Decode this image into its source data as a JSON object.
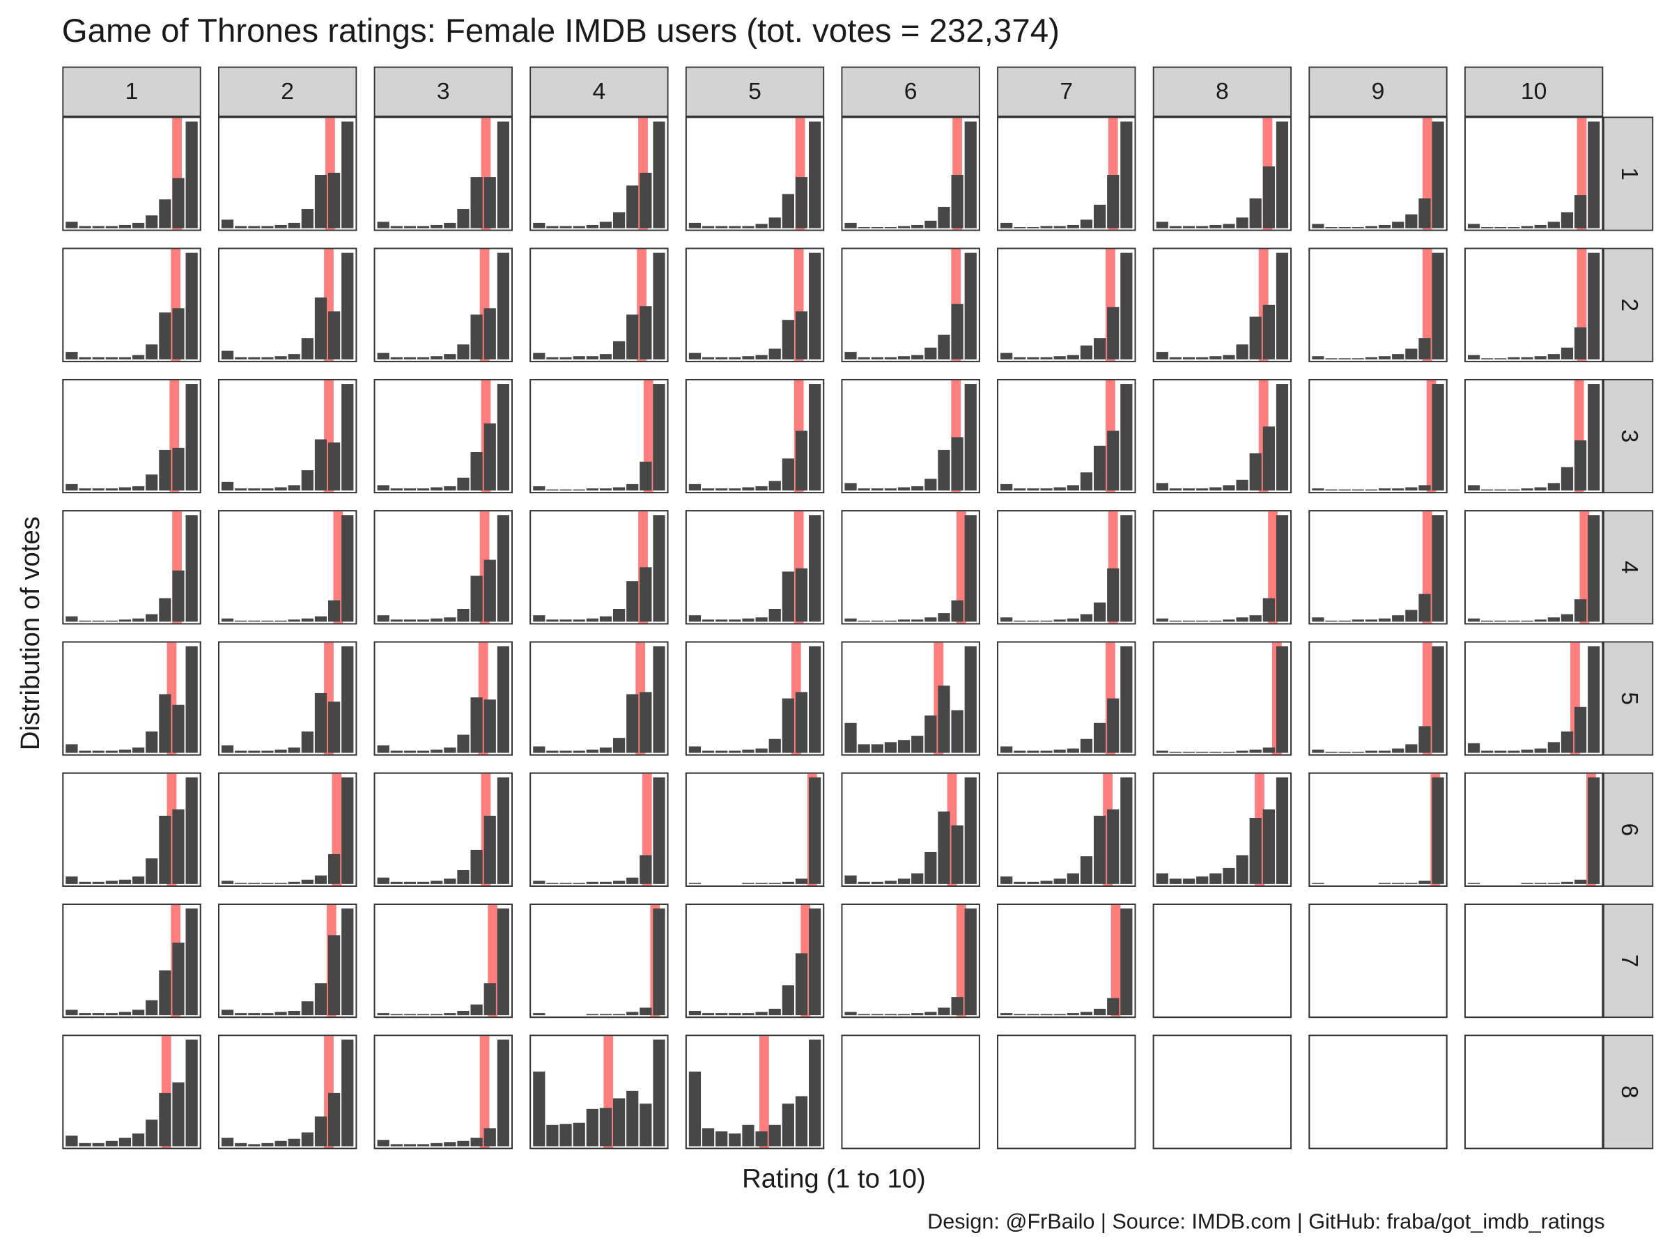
{
  "chart_data": {
    "type": "bar",
    "title": "Game of Thrones ratings: Female IMDB users (tot. votes = 232,374)",
    "x_label": "Rating (1 to 10)",
    "y_label": "Distribution of votes",
    "caption": "Design: @FrBailo | Source: IMDB.com | GitHub: fraba/got_imdb_ratings",
    "episodes": [
      "1",
      "2",
      "3",
      "4",
      "5",
      "6",
      "7",
      "8",
      "9",
      "10"
    ],
    "seasons": [
      "1",
      "2",
      "3",
      "4",
      "5",
      "6",
      "7",
      "8"
    ],
    "xlim": [
      0.5,
      10.5
    ],
    "color": "#474747",
    "mean_color": "#ff7f7f",
    "values": [
      [
        [
          6,
          2,
          2,
          2,
          3,
          5,
          12,
          27,
          47,
          100
        ],
        [
          8,
          2,
          2,
          2,
          3,
          5,
          18,
          50,
          52,
          100
        ],
        [
          6,
          2,
          2,
          2,
          3,
          5,
          18,
          48,
          48,
          100
        ],
        [
          5,
          2,
          2,
          2,
          3,
          6,
          15,
          40,
          52,
          100
        ],
        [
          5,
          2,
          2,
          2,
          2,
          4,
          10,
          32,
          48,
          100
        ],
        [
          5,
          1,
          1,
          1,
          2,
          3,
          7,
          20,
          50,
          100
        ],
        [
          5,
          1,
          1,
          2,
          2,
          3,
          8,
          22,
          50,
          100
        ],
        [
          6,
          2,
          2,
          2,
          3,
          4,
          10,
          28,
          58,
          100
        ],
        [
          4,
          1,
          1,
          1,
          2,
          3,
          6,
          13,
          28,
          100
        ],
        [
          4,
          1,
          1,
          1,
          2,
          3,
          6,
          15,
          31,
          100
        ]
      ],
      [
        [
          7,
          2,
          2,
          2,
          2,
          4,
          14,
          44,
          48,
          100
        ],
        [
          8,
          2,
          2,
          2,
          3,
          5,
          20,
          58,
          45,
          100
        ],
        [
          6,
          2,
          2,
          2,
          3,
          5,
          14,
          42,
          48,
          100
        ],
        [
          6,
          2,
          2,
          3,
          3,
          5,
          17,
          42,
          50,
          100
        ],
        [
          6,
          2,
          2,
          2,
          3,
          4,
          10,
          37,
          45,
          100
        ],
        [
          7,
          2,
          2,
          2,
          3,
          4,
          11,
          23,
          52,
          100
        ],
        [
          6,
          2,
          2,
          2,
          3,
          4,
          13,
          20,
          49,
          100
        ],
        [
          7,
          2,
          2,
          2,
          3,
          4,
          14,
          40,
          51,
          100
        ],
        [
          3,
          1,
          1,
          1,
          2,
          3,
          5,
          10,
          20,
          100
        ],
        [
          4,
          1,
          1,
          2,
          2,
          3,
          5,
          11,
          30,
          100
        ]
      ],
      [
        [
          6,
          2,
          2,
          2,
          3,
          4,
          15,
          38,
          40,
          100
        ],
        [
          8,
          2,
          2,
          2,
          3,
          5,
          19,
          48,
          45,
          100
        ],
        [
          5,
          2,
          2,
          2,
          3,
          4,
          12,
          36,
          63,
          100
        ],
        [
          4,
          1,
          1,
          1,
          2,
          2,
          3,
          6,
          27,
          100
        ],
        [
          6,
          2,
          2,
          2,
          3,
          4,
          9,
          30,
          56,
          100
        ],
        [
          7,
          2,
          2,
          2,
          3,
          4,
          11,
          38,
          50,
          100
        ],
        [
          6,
          2,
          2,
          2,
          3,
          5,
          17,
          42,
          56,
          100
        ],
        [
          7,
          2,
          2,
          2,
          3,
          5,
          10,
          35,
          60,
          100
        ],
        [
          2,
          1,
          1,
          1,
          1,
          2,
          2,
          3,
          5,
          100
        ],
        [
          5,
          1,
          1,
          1,
          2,
          3,
          7,
          22,
          47,
          100
        ]
      ],
      [
        [
          5,
          1,
          1,
          1,
          2,
          3,
          7,
          22,
          48,
          100
        ],
        [
          3,
          1,
          1,
          1,
          1,
          2,
          3,
          5,
          20,
          100
        ],
        [
          6,
          2,
          2,
          2,
          3,
          4,
          12,
          43,
          58,
          100
        ],
        [
          6,
          2,
          2,
          2,
          3,
          5,
          12,
          38,
          51,
          100
        ],
        [
          6,
          2,
          2,
          2,
          3,
          4,
          12,
          47,
          50,
          100
        ],
        [
          3,
          1,
          1,
          1,
          2,
          2,
          4,
          8,
          20,
          100
        ],
        [
          4,
          1,
          1,
          1,
          2,
          3,
          7,
          18,
          50,
          100
        ],
        [
          3,
          1,
          1,
          1,
          1,
          2,
          4,
          6,
          22,
          100
        ],
        [
          4,
          1,
          1,
          2,
          2,
          3,
          6,
          11,
          26,
          100
        ],
        [
          3,
          1,
          1,
          1,
          1,
          2,
          4,
          7,
          21,
          100
        ]
      ],
      [
        [
          8,
          2,
          2,
          2,
          3,
          5,
          20,
          55,
          45,
          100
        ],
        [
          7,
          2,
          2,
          2,
          3,
          5,
          20,
          56,
          48,
          100
        ],
        [
          7,
          2,
          2,
          2,
          3,
          5,
          17,
          52,
          50,
          100
        ],
        [
          6,
          2,
          2,
          2,
          3,
          5,
          14,
          55,
          57,
          100
        ],
        [
          6,
          2,
          2,
          2,
          3,
          4,
          13,
          51,
          57,
          100
        ],
        [
          28,
          8,
          8,
          10,
          12,
          16,
          35,
          63,
          40,
          100
        ],
        [
          6,
          2,
          2,
          2,
          3,
          4,
          13,
          28,
          51,
          100
        ],
        [
          2,
          1,
          1,
          1,
          1,
          1,
          2,
          3,
          5,
          100
        ],
        [
          3,
          1,
          1,
          1,
          2,
          2,
          4,
          8,
          25,
          100
        ],
        [
          9,
          2,
          2,
          2,
          3,
          4,
          10,
          20,
          43,
          100
        ]
      ],
      [
        [
          7,
          2,
          2,
          3,
          4,
          7,
          24,
          64,
          70,
          100
        ],
        [
          3,
          1,
          1,
          1,
          1,
          2,
          4,
          8,
          28,
          100
        ],
        [
          6,
          2,
          2,
          2,
          3,
          5,
          13,
          32,
          64,
          100
        ],
        [
          3,
          1,
          1,
          1,
          2,
          2,
          3,
          6,
          27,
          100
        ],
        [
          1,
          0,
          0,
          0,
          1,
          1,
          1,
          2,
          5,
          100
        ],
        [
          8,
          2,
          2,
          3,
          5,
          10,
          30,
          68,
          55,
          100
        ],
        [
          7,
          2,
          2,
          3,
          5,
          10,
          26,
          64,
          70,
          100
        ],
        [
          10,
          5,
          5,
          7,
          10,
          15,
          27,
          62,
          70,
          100
        ],
        [
          1,
          0,
          0,
          0,
          0,
          1,
          1,
          1,
          3,
          100
        ],
        [
          1,
          0,
          0,
          0,
          1,
          1,
          1,
          2,
          4,
          100
        ]
      ],
      [
        [
          5,
          2,
          2,
          2,
          3,
          5,
          14,
          42,
          68,
          100
        ],
        [
          5,
          2,
          2,
          2,
          3,
          4,
          13,
          30,
          75,
          100
        ],
        [
          2,
          1,
          1,
          1,
          1,
          2,
          4,
          10,
          30,
          100
        ],
        [
          2,
          0,
          0,
          0,
          1,
          1,
          1,
          3,
          7,
          100
        ],
        [
          4,
          2,
          2,
          2,
          2,
          3,
          6,
          28,
          58,
          100
        ],
        [
          3,
          1,
          1,
          1,
          1,
          2,
          3,
          7,
          17,
          100
        ],
        [
          2,
          1,
          1,
          1,
          1,
          2,
          3,
          6,
          16,
          100
        ]
      ],
      [
        [
          10,
          3,
          3,
          5,
          8,
          12,
          25,
          50,
          60,
          100
        ],
        [
          8,
          3,
          2,
          3,
          5,
          7,
          13,
          28,
          50,
          100
        ],
        [
          6,
          2,
          2,
          2,
          3,
          4,
          5,
          8,
          17,
          100
        ],
        [
          70,
          20,
          21,
          22,
          35,
          36,
          45,
          52,
          40,
          100
        ],
        [
          70,
          17,
          14,
          12,
          20,
          14,
          20,
          40,
          47,
          100
        ]
      ]
    ],
    "means": [
      [
        8.9,
        8.7,
        8.7,
        8.8,
        8.9,
        9.0,
        9.0,
        8.9,
        9.2,
        9.1
      ],
      [
        8.8,
        8.6,
        8.6,
        8.7,
        8.8,
        8.9,
        8.8,
        8.6,
        9.2,
        9.1
      ],
      [
        8.7,
        8.6,
        8.7,
        9.2,
        8.8,
        8.9,
        8.8,
        8.6,
        9.5,
        8.9
      ],
      [
        8.9,
        9.3,
        8.6,
        8.8,
        8.8,
        9.3,
        9.0,
        9.3,
        9.2,
        9.3
      ],
      [
        8.5,
        8.6,
        8.5,
        8.6,
        8.6,
        7.6,
        8.8,
        9.6,
        9.2,
        8.6
      ],
      [
        8.5,
        9.2,
        8.7,
        9.1,
        9.8,
        8.6,
        8.6,
        8.3,
        9.8,
        9.8
      ],
      [
        8.8,
        8.8,
        9.2,
        9.7,
        9.3,
        9.3,
        9.2
      ],
      [
        8.1,
        8.6,
        8.6,
        6.2,
        6.2
      ]
    ]
  }
}
